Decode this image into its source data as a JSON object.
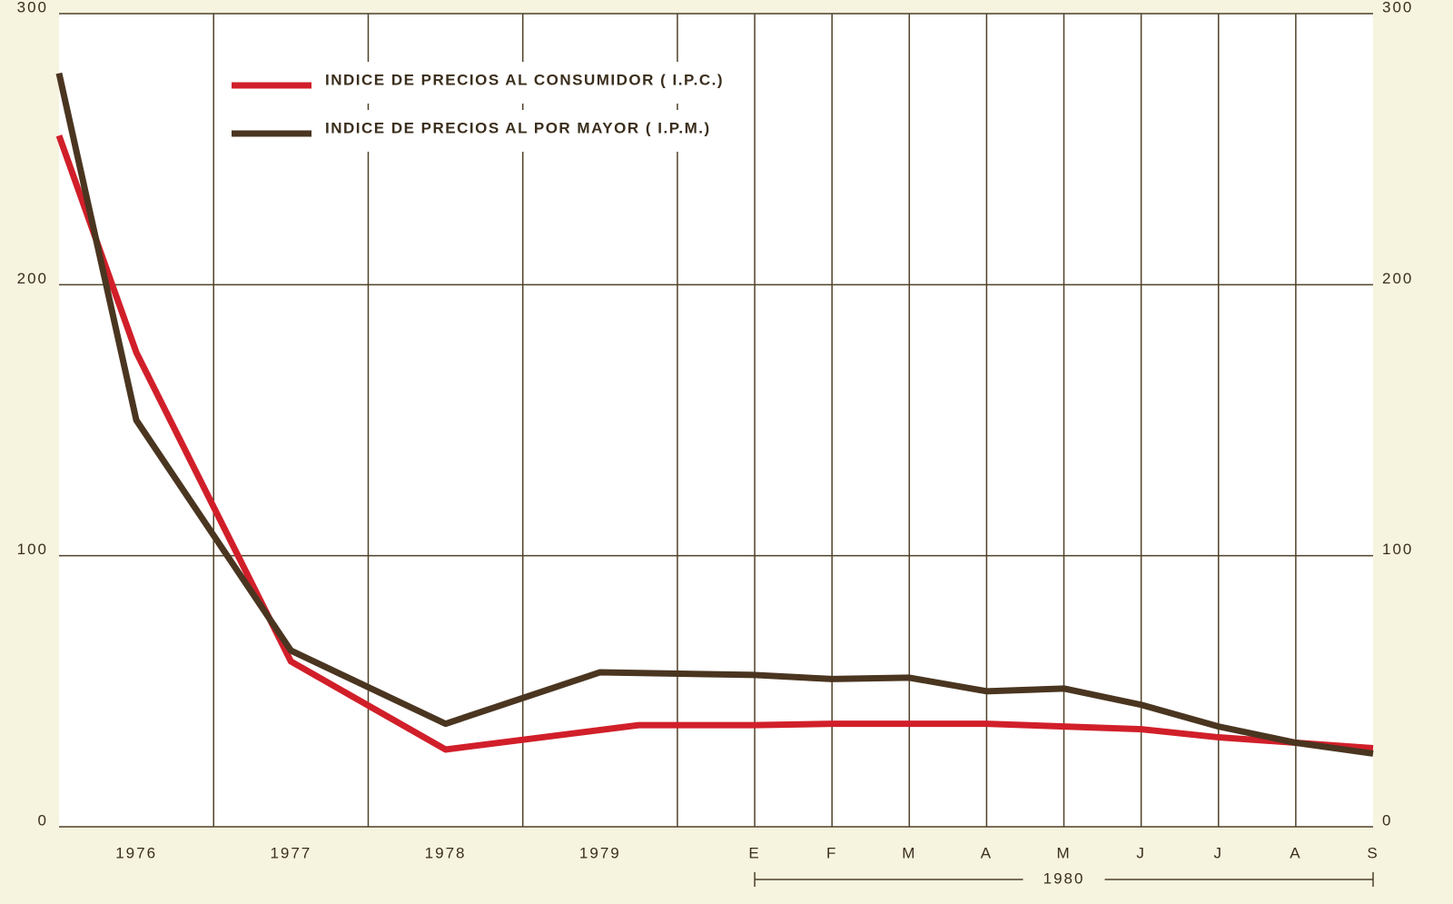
{
  "chart_data": {
    "type": "line",
    "subtitle": "1980",
    "xlim": [
      0,
      17
    ],
    "ylim": [
      0,
      300
    ],
    "yticks": [
      0,
      100,
      200,
      300
    ],
    "xticks": [
      {
        "value": 1,
        "label": "1976"
      },
      {
        "value": 3,
        "label": "1977"
      },
      {
        "value": 5,
        "label": "1978"
      },
      {
        "value": 7,
        "label": "1979"
      },
      {
        "value": 9,
        "label": "E"
      },
      {
        "value": 10,
        "label": "F"
      },
      {
        "value": 11,
        "label": "M"
      },
      {
        "value": 12,
        "label": "A"
      },
      {
        "value": 13,
        "label": "M"
      },
      {
        "value": 14,
        "label": "J"
      },
      {
        "value": 15,
        "label": "J"
      },
      {
        "value": 16,
        "label": "A"
      },
      {
        "value": 17,
        "label": "S"
      }
    ],
    "xgrid": [
      2,
      4,
      6,
      8,
      9,
      10,
      11,
      12,
      13,
      14,
      15,
      16
    ],
    "grid": true,
    "legend": "upper left",
    "series": [
      {
        "name": "INDICE DE PRECIOS AL CONSUMIDOR ( I.P.C.)",
        "color": "#d11f2a",
        "x": [
          0,
          1,
          3,
          5,
          7.5,
          9,
          10,
          11,
          12,
          13,
          14,
          15,
          16,
          17
        ],
        "values": [
          255,
          175,
          61,
          28.5,
          37.5,
          37.5,
          38,
          38,
          38,
          37,
          36,
          33,
          31,
          29
        ]
      },
      {
        "name": "INDICE DE PRECIOS AL POR MAYOR ( I.P.M.)",
        "color": "#4a3520",
        "x": [
          0,
          1,
          3,
          5,
          7,
          9,
          10,
          11,
          12,
          13,
          14,
          15,
          16,
          17
        ],
        "values": [
          278,
          150,
          65,
          38,
          57,
          56,
          54.5,
          55,
          50,
          51,
          45,
          37,
          31,
          27
        ]
      }
    ]
  }
}
